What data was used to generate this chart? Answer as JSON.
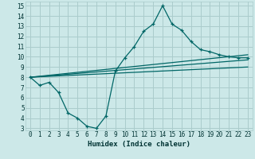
{
  "xlabel": "Humidex (Indice chaleur)",
  "bg_color": "#cce8e8",
  "grid_color": "#aacccc",
  "line_color": "#006666",
  "xlim": [
    -0.5,
    23.5
  ],
  "ylim": [
    2.8,
    15.4
  ],
  "xticks": [
    0,
    1,
    2,
    3,
    4,
    5,
    6,
    7,
    8,
    9,
    10,
    11,
    12,
    13,
    14,
    15,
    16,
    17,
    18,
    19,
    20,
    21,
    22,
    23
  ],
  "yticks": [
    3,
    4,
    5,
    6,
    7,
    8,
    9,
    10,
    11,
    12,
    13,
    14,
    15
  ],
  "line1_x": [
    0,
    1,
    2,
    3,
    4,
    5,
    6,
    7,
    8,
    9,
    10,
    11,
    12,
    13,
    14,
    15,
    16,
    17,
    18,
    19,
    20,
    21,
    22,
    23
  ],
  "line1_y": [
    8.0,
    7.2,
    7.5,
    6.5,
    4.5,
    4.0,
    3.2,
    3.0,
    4.2,
    8.6,
    9.9,
    11.0,
    12.5,
    13.2,
    15.0,
    13.2,
    12.6,
    11.5,
    10.7,
    10.5,
    10.2,
    10.0,
    9.9,
    9.9
  ],
  "line2_x": [
    0,
    23
  ],
  "line2_y": [
    8.0,
    10.2
  ],
  "line3_x": [
    0,
    23
  ],
  "line3_y": [
    8.0,
    9.7
  ],
  "line4_x": [
    0,
    23
  ],
  "line4_y": [
    8.0,
    9.0
  ],
  "tick_fontsize": 5.5,
  "xlabel_fontsize": 6.5
}
